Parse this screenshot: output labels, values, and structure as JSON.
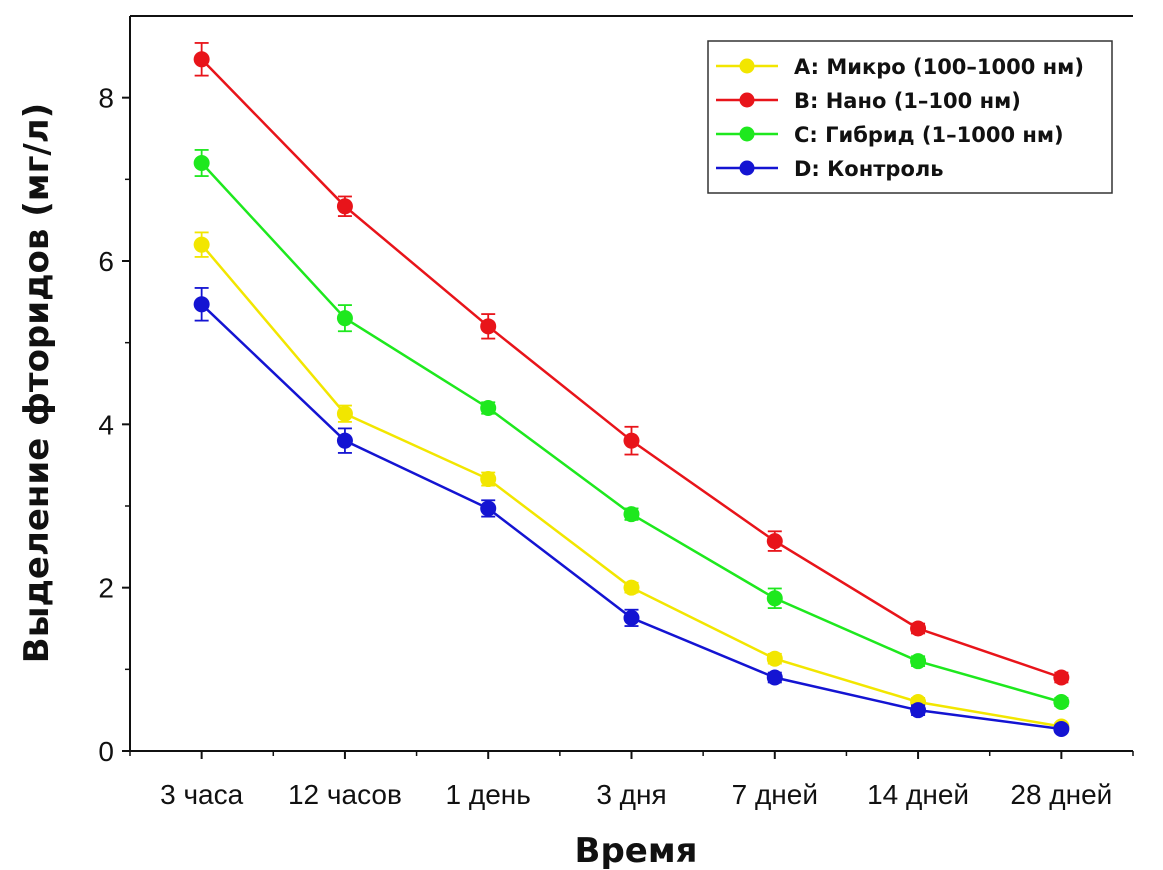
{
  "chart_data": {
    "type": "line",
    "title": "",
    "xlabel": "Время",
    "ylabel": "Выделение фторидов (мг/л)",
    "categories": [
      "3 часа",
      "12 часов",
      "1 день",
      "3 дня",
      "7 дней",
      "14 дней",
      "28 дней"
    ],
    "ylim": [
      0,
      9
    ],
    "yticks": [
      0,
      2,
      4,
      6,
      8
    ],
    "grid": false,
    "legend_position": "top-right",
    "series": [
      {
        "name": "A: Микро (100–1000 нм)",
        "color": "#f2e600",
        "values": [
          6.2,
          4.13,
          3.33,
          2.0,
          1.13,
          0.6,
          0.3
        ],
        "errors": [
          0.15,
          0.1,
          0.08,
          0.06,
          0.06,
          0.05,
          0.04
        ]
      },
      {
        "name": "B: Нано (1–100 нм)",
        "color": "#e8141a",
        "values": [
          8.47,
          6.67,
          5.2,
          3.8,
          2.57,
          1.5,
          0.9
        ],
        "errors": [
          0.2,
          0.12,
          0.15,
          0.17,
          0.12,
          0.06,
          0.06
        ]
      },
      {
        "name": "C: Гибрид (1–1000 нм)",
        "color": "#1ee81e",
        "values": [
          7.2,
          5.3,
          4.2,
          2.9,
          1.87,
          1.1,
          0.6
        ],
        "errors": [
          0.16,
          0.16,
          0.07,
          0.07,
          0.12,
          0.06,
          0.05
        ]
      },
      {
        "name": "D: Контроль",
        "color": "#1414d2",
        "values": [
          5.47,
          3.8,
          2.97,
          1.63,
          0.9,
          0.5,
          0.27
        ],
        "errors": [
          0.2,
          0.15,
          0.1,
          0.1,
          0.06,
          0.06,
          0.04
        ]
      }
    ]
  }
}
